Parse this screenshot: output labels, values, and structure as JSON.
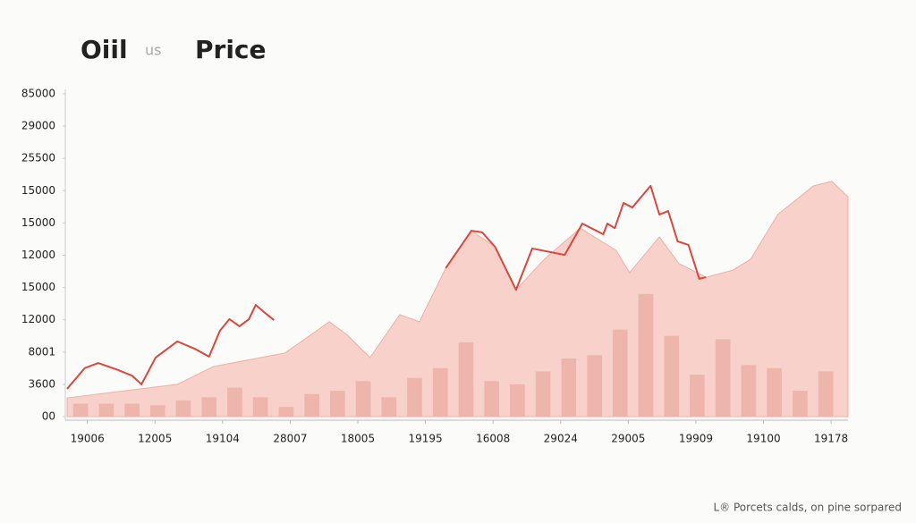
{
  "chart_data": {
    "type": "line",
    "title": [
      "Oiil",
      "us",
      "Price"
    ],
    "note": "L® Porcets calds, on pine sorpared",
    "xlim": [
      -0.3,
      11.25
    ],
    "xticks": [
      {
        "value": 0,
        "label": "19006"
      },
      {
        "value": 1,
        "label": "12005"
      },
      {
        "value": 2,
        "label": "19104"
      },
      {
        "value": 3,
        "label": "28007"
      },
      {
        "value": 4,
        "label": "18005"
      },
      {
        "value": 5,
        "label": "19195"
      },
      {
        "value": 6,
        "label": "16008"
      },
      {
        "value": 7,
        "label": "29024"
      },
      {
        "value": 8,
        "label": "29005"
      },
      {
        "value": 9,
        "label": "19909"
      },
      {
        "value": 10,
        "label": "19100"
      },
      {
        "value": 11,
        "label": "19178"
      }
    ],
    "ylim": [
      0,
      10
    ],
    "yticks": [
      {
        "value": 0,
        "label": "00"
      },
      {
        "value": 1,
        "label": "3600"
      },
      {
        "value": 2,
        "label": "8001"
      },
      {
        "value": 3,
        "label": "12000"
      },
      {
        "value": 4,
        "label": "15000"
      },
      {
        "value": 5,
        "label": "12000"
      },
      {
        "value": 6,
        "label": "15000"
      },
      {
        "value": 7,
        "label": "15000"
      },
      {
        "value": 8,
        "label": "25500"
      },
      {
        "value": 9,
        "label": "29000"
      },
      {
        "value": 10,
        "label": "85000"
      }
    ],
    "series": [
      {
        "type": "area",
        "color": "#f5c3b9",
        "x": [
          -0.3,
          1.33,
          1.86,
          2.92,
          3.58,
          3.85,
          4.18,
          4.62,
          4.91,
          5.3,
          5.68,
          6.03,
          6.34,
          6.76,
          7.29,
          7.82,
          8.02,
          8.46,
          8.75,
          9.15,
          9.55,
          9.81,
          10.21,
          10.74,
          11.01,
          11.25
        ],
        "values": [
          0.58,
          1.0,
          1.55,
          1.97,
          2.94,
          2.52,
          1.83,
          3.16,
          2.94,
          4.6,
          5.76,
          5.26,
          3.93,
          4.88,
          5.84,
          5.15,
          4.46,
          5.57,
          4.74,
          4.32,
          4.54,
          4.88,
          6.26,
          7.15,
          7.29,
          6.81
        ]
      },
      {
        "type": "bar",
        "color": "#eaa99f",
        "x": [
          -0.1,
          0.28,
          0.66,
          1.04,
          1.42,
          1.8,
          2.18,
          2.56,
          2.94,
          3.32,
          3.7,
          4.08,
          4.46,
          4.84,
          5.22,
          5.6,
          5.98,
          6.36,
          6.74,
          7.12,
          7.5,
          7.88,
          8.26,
          8.64,
          9.02,
          9.4,
          9.78,
          10.16,
          10.54,
          10.92
        ],
        "values": [
          0.4,
          0.4,
          0.4,
          0.35,
          0.5,
          0.6,
          0.9,
          0.6,
          0.3,
          0.7,
          0.8,
          1.1,
          0.6,
          1.2,
          1.5,
          2.3,
          1.1,
          1.0,
          1.4,
          1.8,
          1.9,
          2.7,
          3.8,
          2.5,
          1.3,
          2.4,
          1.6,
          1.5,
          0.8,
          1.4
        ]
      },
      {
        "type": "line",
        "color": "#d9473d",
        "x": [
          -0.3,
          -0.04,
          0.16,
          0.46,
          0.66,
          0.8,
          1.01,
          1.33,
          1.59,
          1.8,
          1.96,
          2.1,
          2.25,
          2.39,
          2.49,
          2.63,
          2.76,
          4.0,
          5.3,
          5.68,
          5.84,
          6.03,
          6.34,
          6.58,
          7.06,
          7.32,
          7.63,
          7.69,
          7.8,
          7.93,
          8.06,
          8.33,
          8.46,
          8.59,
          8.73,
          8.89,
          9.05,
          9.15
        ],
        "values": [
          0.86,
          1.5,
          1.66,
          1.44,
          1.27,
          1.0,
          1.83,
          2.33,
          2.1,
          1.86,
          2.66,
          3.02,
          2.8,
          3.02,
          3.46,
          3.21,
          2.99,
          null,
          4.6,
          5.76,
          5.71,
          5.26,
          3.93,
          5.21,
          5.01,
          5.98,
          5.65,
          5.98,
          5.84,
          6.62,
          6.48,
          7.15,
          6.26,
          6.37,
          5.43,
          5.32,
          4.27,
          4.32
        ]
      }
    ]
  }
}
